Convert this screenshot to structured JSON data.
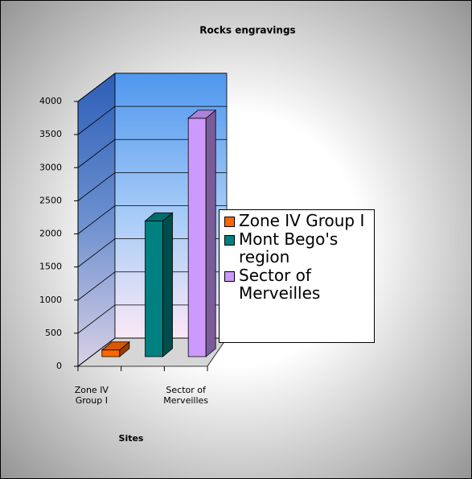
{
  "chart_data": {
    "type": "bar3d",
    "title": "Rocks engravings",
    "categories": [
      "Zone IV Group I",
      null,
      "Sector of Merveilles"
    ],
    "legend": [
      "Zone IV Group I",
      "Mont Bego's region",
      "Sector of Merveilles"
    ],
    "values": [
      100,
      2050,
      3600
    ],
    "colors": [
      "#ff6600",
      "#008080",
      "#cc99ff"
    ],
    "x_label": "Sites",
    "ylim": [
      0,
      4000
    ],
    "yticks": [
      0,
      500,
      1000,
      1500,
      2000,
      2500,
      3000,
      3500,
      4000
    ],
    "grid": true,
    "legend_position": "right"
  }
}
